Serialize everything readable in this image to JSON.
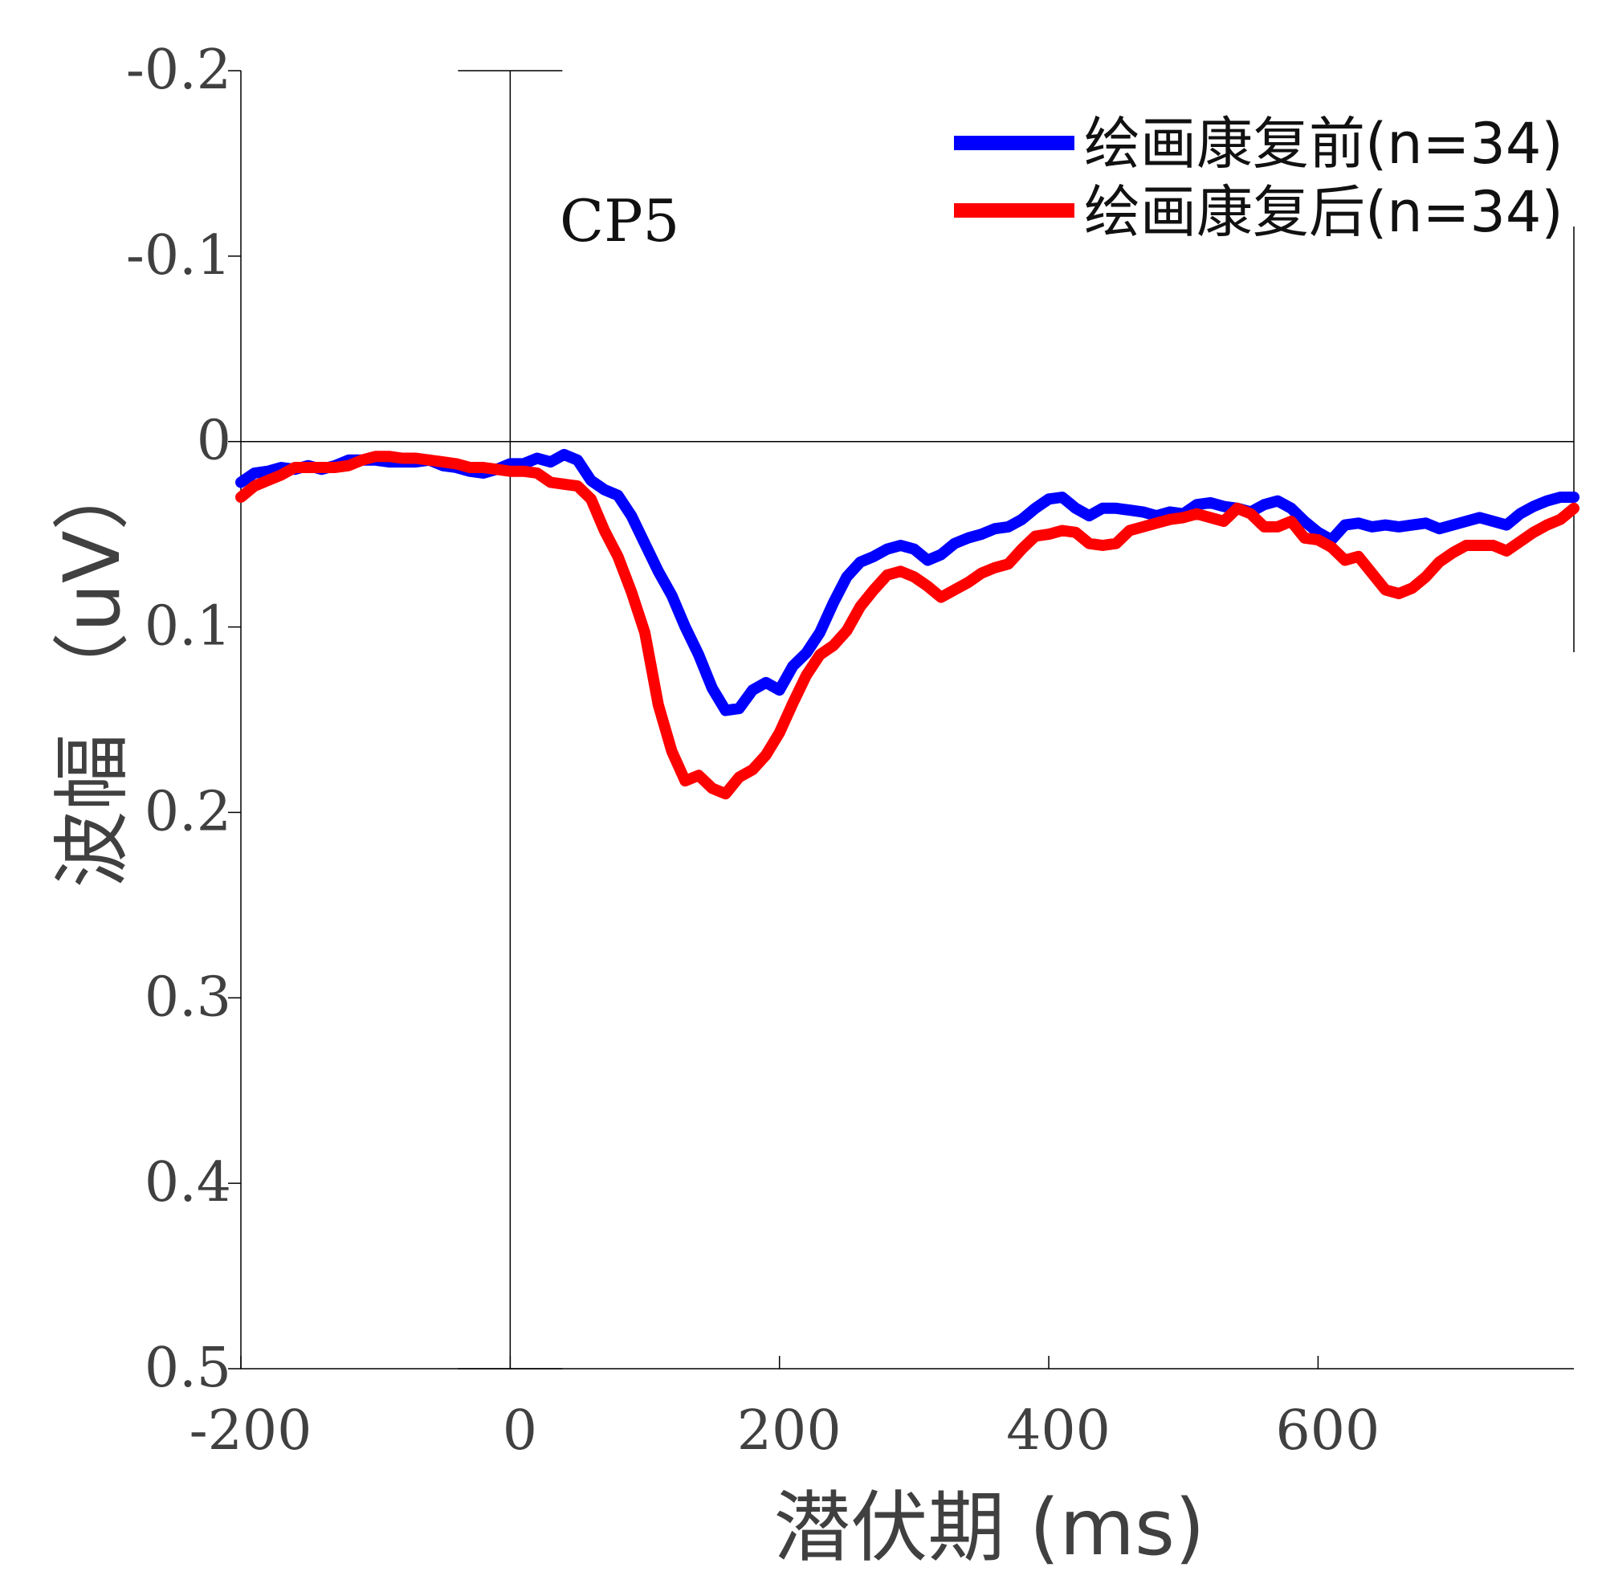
{
  "chart_data": {
    "type": "line",
    "annotation": "CP5",
    "xlabel": "潜伏期 (ms)",
    "ylabel": "波幅 （uV）",
    "xlim": [
      -200,
      790
    ],
    "ylim": [
      -0.2,
      0.5
    ],
    "y_reversed": true,
    "x_ticks": [
      -200,
      0,
      200,
      400,
      600
    ],
    "x_tick_labels": [
      "-200",
      "0",
      "200",
      "400",
      "600"
    ],
    "y_ticks": [
      -0.2,
      -0.1,
      0,
      0.1,
      0.2,
      0.3,
      0.4,
      0.5
    ],
    "y_tick_labels": [
      "-0.2",
      "-0.1",
      "0",
      "0.1",
      "0.2",
      "0.3",
      "0.4",
      "0.5"
    ],
    "legend_position": "top-right",
    "series": [
      {
        "name": "绘画康复前(n=34)",
        "color": "#0000ff",
        "points": [
          [
            -200,
            0.022
          ],
          [
            -190,
            0.017
          ],
          [
            -180,
            0.016
          ],
          [
            -170,
            0.014
          ],
          [
            -160,
            0.015
          ],
          [
            -150,
            0.013
          ],
          [
            -140,
            0.015
          ],
          [
            -130,
            0.013
          ],
          [
            -120,
            0.01
          ],
          [
            -110,
            0.01
          ],
          [
            -100,
            0.01
          ],
          [
            -90,
            0.011
          ],
          [
            -80,
            0.011
          ],
          [
            -70,
            0.011
          ],
          [
            -60,
            0.01
          ],
          [
            -50,
            0.013
          ],
          [
            -40,
            0.014
          ],
          [
            -30,
            0.016
          ],
          [
            -20,
            0.017
          ],
          [
            -10,
            0.015
          ],
          [
            0,
            0.012
          ],
          [
            10,
            0.012
          ],
          [
            20,
            0.009
          ],
          [
            30,
            0.011
          ],
          [
            40,
            0.007
          ],
          [
            50,
            0.01
          ],
          [
            60,
            0.021
          ],
          [
            70,
            0.026
          ],
          [
            80,
            0.029
          ],
          [
            90,
            0.04
          ],
          [
            100,
            0.055
          ],
          [
            110,
            0.07
          ],
          [
            120,
            0.083
          ],
          [
            130,
            0.1
          ],
          [
            140,
            0.115
          ],
          [
            150,
            0.133
          ],
          [
            160,
            0.145
          ],
          [
            170,
            0.144
          ],
          [
            180,
            0.134
          ],
          [
            190,
            0.13
          ],
          [
            200,
            0.134
          ],
          [
            210,
            0.121
          ],
          [
            220,
            0.114
          ],
          [
            230,
            0.103
          ],
          [
            240,
            0.087
          ],
          [
            250,
            0.073
          ],
          [
            260,
            0.065
          ],
          [
            270,
            0.062
          ],
          [
            280,
            0.058
          ],
          [
            290,
            0.056
          ],
          [
            300,
            0.058
          ],
          [
            310,
            0.064
          ],
          [
            320,
            0.061
          ],
          [
            330,
            0.055
          ],
          [
            340,
            0.052
          ],
          [
            350,
            0.05
          ],
          [
            360,
            0.047
          ],
          [
            370,
            0.046
          ],
          [
            380,
            0.042
          ],
          [
            390,
            0.036
          ],
          [
            400,
            0.031
          ],
          [
            410,
            0.03
          ],
          [
            420,
            0.036
          ],
          [
            430,
            0.04
          ],
          [
            440,
            0.036
          ],
          [
            450,
            0.036
          ],
          [
            460,
            0.037
          ],
          [
            470,
            0.038
          ],
          [
            480,
            0.04
          ],
          [
            490,
            0.038
          ],
          [
            500,
            0.039
          ],
          [
            510,
            0.034
          ],
          [
            520,
            0.033
          ],
          [
            530,
            0.035
          ],
          [
            540,
            0.036
          ],
          [
            550,
            0.038
          ],
          [
            560,
            0.034
          ],
          [
            570,
            0.032
          ],
          [
            580,
            0.036
          ],
          [
            590,
            0.043
          ],
          [
            600,
            0.049
          ],
          [
            610,
            0.053
          ],
          [
            620,
            0.045
          ],
          [
            630,
            0.044
          ],
          [
            640,
            0.046
          ],
          [
            650,
            0.045
          ],
          [
            660,
            0.046
          ],
          [
            670,
            0.045
          ],
          [
            680,
            0.044
          ],
          [
            690,
            0.047
          ],
          [
            700,
            0.045
          ],
          [
            710,
            0.043
          ],
          [
            720,
            0.041
          ],
          [
            730,
            0.043
          ],
          [
            740,
            0.045
          ],
          [
            750,
            0.039
          ],
          [
            760,
            0.035
          ],
          [
            770,
            0.032
          ],
          [
            780,
            0.03
          ],
          [
            790,
            0.03
          ]
        ]
      },
      {
        "name": "绘画康复后(n=34)",
        "color": "#ff0000",
        "points": [
          [
            -200,
            0.03
          ],
          [
            -190,
            0.024
          ],
          [
            -180,
            0.021
          ],
          [
            -170,
            0.018
          ],
          [
            -160,
            0.014
          ],
          [
            -150,
            0.014
          ],
          [
            -140,
            0.014
          ],
          [
            -130,
            0.014
          ],
          [
            -120,
            0.013
          ],
          [
            -110,
            0.01
          ],
          [
            -100,
            0.008
          ],
          [
            -90,
            0.008
          ],
          [
            -80,
            0.009
          ],
          [
            -70,
            0.009
          ],
          [
            -60,
            0.01
          ],
          [
            -50,
            0.011
          ],
          [
            -40,
            0.012
          ],
          [
            -30,
            0.014
          ],
          [
            -20,
            0.014
          ],
          [
            -10,
            0.015
          ],
          [
            0,
            0.016
          ],
          [
            10,
            0.016
          ],
          [
            20,
            0.017
          ],
          [
            30,
            0.022
          ],
          [
            40,
            0.023
          ],
          [
            50,
            0.024
          ],
          [
            60,
            0.031
          ],
          [
            70,
            0.048
          ],
          [
            80,
            0.062
          ],
          [
            90,
            0.081
          ],
          [
            100,
            0.103
          ],
          [
            110,
            0.142
          ],
          [
            120,
            0.167
          ],
          [
            130,
            0.183
          ],
          [
            140,
            0.18
          ],
          [
            150,
            0.187
          ],
          [
            160,
            0.19
          ],
          [
            170,
            0.181
          ],
          [
            180,
            0.177
          ],
          [
            190,
            0.169
          ],
          [
            200,
            0.157
          ],
          [
            210,
            0.141
          ],
          [
            220,
            0.126
          ],
          [
            230,
            0.115
          ],
          [
            240,
            0.11
          ],
          [
            250,
            0.102
          ],
          [
            260,
            0.089
          ],
          [
            270,
            0.08
          ],
          [
            280,
            0.072
          ],
          [
            290,
            0.07
          ],
          [
            300,
            0.073
          ],
          [
            310,
            0.078
          ],
          [
            320,
            0.084
          ],
          [
            330,
            0.08
          ],
          [
            340,
            0.076
          ],
          [
            350,
            0.071
          ],
          [
            360,
            0.068
          ],
          [
            370,
            0.066
          ],
          [
            380,
            0.058
          ],
          [
            390,
            0.051
          ],
          [
            400,
            0.05
          ],
          [
            410,
            0.048
          ],
          [
            420,
            0.049
          ],
          [
            430,
            0.055
          ],
          [
            440,
            0.056
          ],
          [
            450,
            0.055
          ],
          [
            460,
            0.048
          ],
          [
            470,
            0.046
          ],
          [
            480,
            0.044
          ],
          [
            490,
            0.042
          ],
          [
            500,
            0.041
          ],
          [
            510,
            0.039
          ],
          [
            520,
            0.041
          ],
          [
            530,
            0.043
          ],
          [
            540,
            0.036
          ],
          [
            550,
            0.039
          ],
          [
            560,
            0.046
          ],
          [
            570,
            0.046
          ],
          [
            580,
            0.043
          ],
          [
            590,
            0.052
          ],
          [
            600,
            0.053
          ],
          [
            610,
            0.057
          ],
          [
            620,
            0.064
          ],
          [
            630,
            0.062
          ],
          [
            640,
            0.071
          ],
          [
            650,
            0.08
          ],
          [
            660,
            0.082
          ],
          [
            670,
            0.079
          ],
          [
            680,
            0.073
          ],
          [
            690,
            0.065
          ],
          [
            700,
            0.06
          ],
          [
            710,
            0.056
          ],
          [
            720,
            0.056
          ],
          [
            730,
            0.056
          ],
          [
            740,
            0.059
          ],
          [
            750,
            0.054
          ],
          [
            760,
            0.049
          ],
          [
            770,
            0.045
          ],
          [
            780,
            0.042
          ],
          [
            790,
            0.036
          ]
        ]
      }
    ]
  }
}
